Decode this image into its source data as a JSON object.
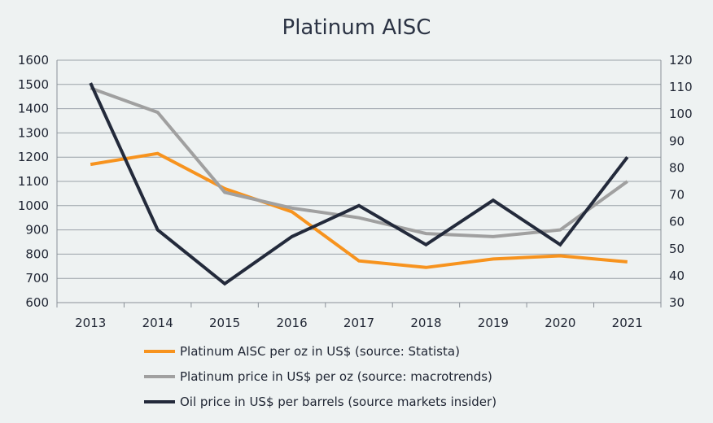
{
  "chart_data": {
    "type": "line",
    "title": "Platinum AISC",
    "categories": [
      "2013",
      "2014",
      "2015",
      "2016",
      "2017",
      "2018",
      "2019",
      "2020",
      "2021"
    ],
    "y_left": {
      "range": [
        600,
        1600
      ],
      "ticks": [
        600,
        700,
        800,
        900,
        1000,
        1100,
        1200,
        1300,
        1400,
        1500,
        1600
      ]
    },
    "y_right": {
      "range": [
        30,
        120
      ],
      "ticks": [
        30,
        40,
        50,
        60,
        70,
        80,
        90,
        100,
        110,
        120
      ]
    },
    "grid": true,
    "legend_position": "bottom",
    "series": [
      {
        "name": "Platinum AISC per oz in US$ (source: Statista)",
        "axis": "left",
        "color": "#f7931e",
        "values": [
          1170,
          1215,
          1070,
          975,
          772,
          745,
          780,
          793,
          768
        ]
      },
      {
        "name": "Platinum price in US$ per oz (source: macrotrends)",
        "axis": "left",
        "color": "#a0a0a0",
        "values": [
          1485,
          1385,
          1055,
          990,
          950,
          885,
          872,
          900,
          1100
        ]
      },
      {
        "name": "Oil price in US$ per barrels (source markets insider)",
        "axis": "right",
        "color": "#232a3b",
        "values": [
          111.5,
          57,
          37,
          54.5,
          66,
          51.5,
          68,
          51.5,
          84
        ]
      }
    ]
  }
}
